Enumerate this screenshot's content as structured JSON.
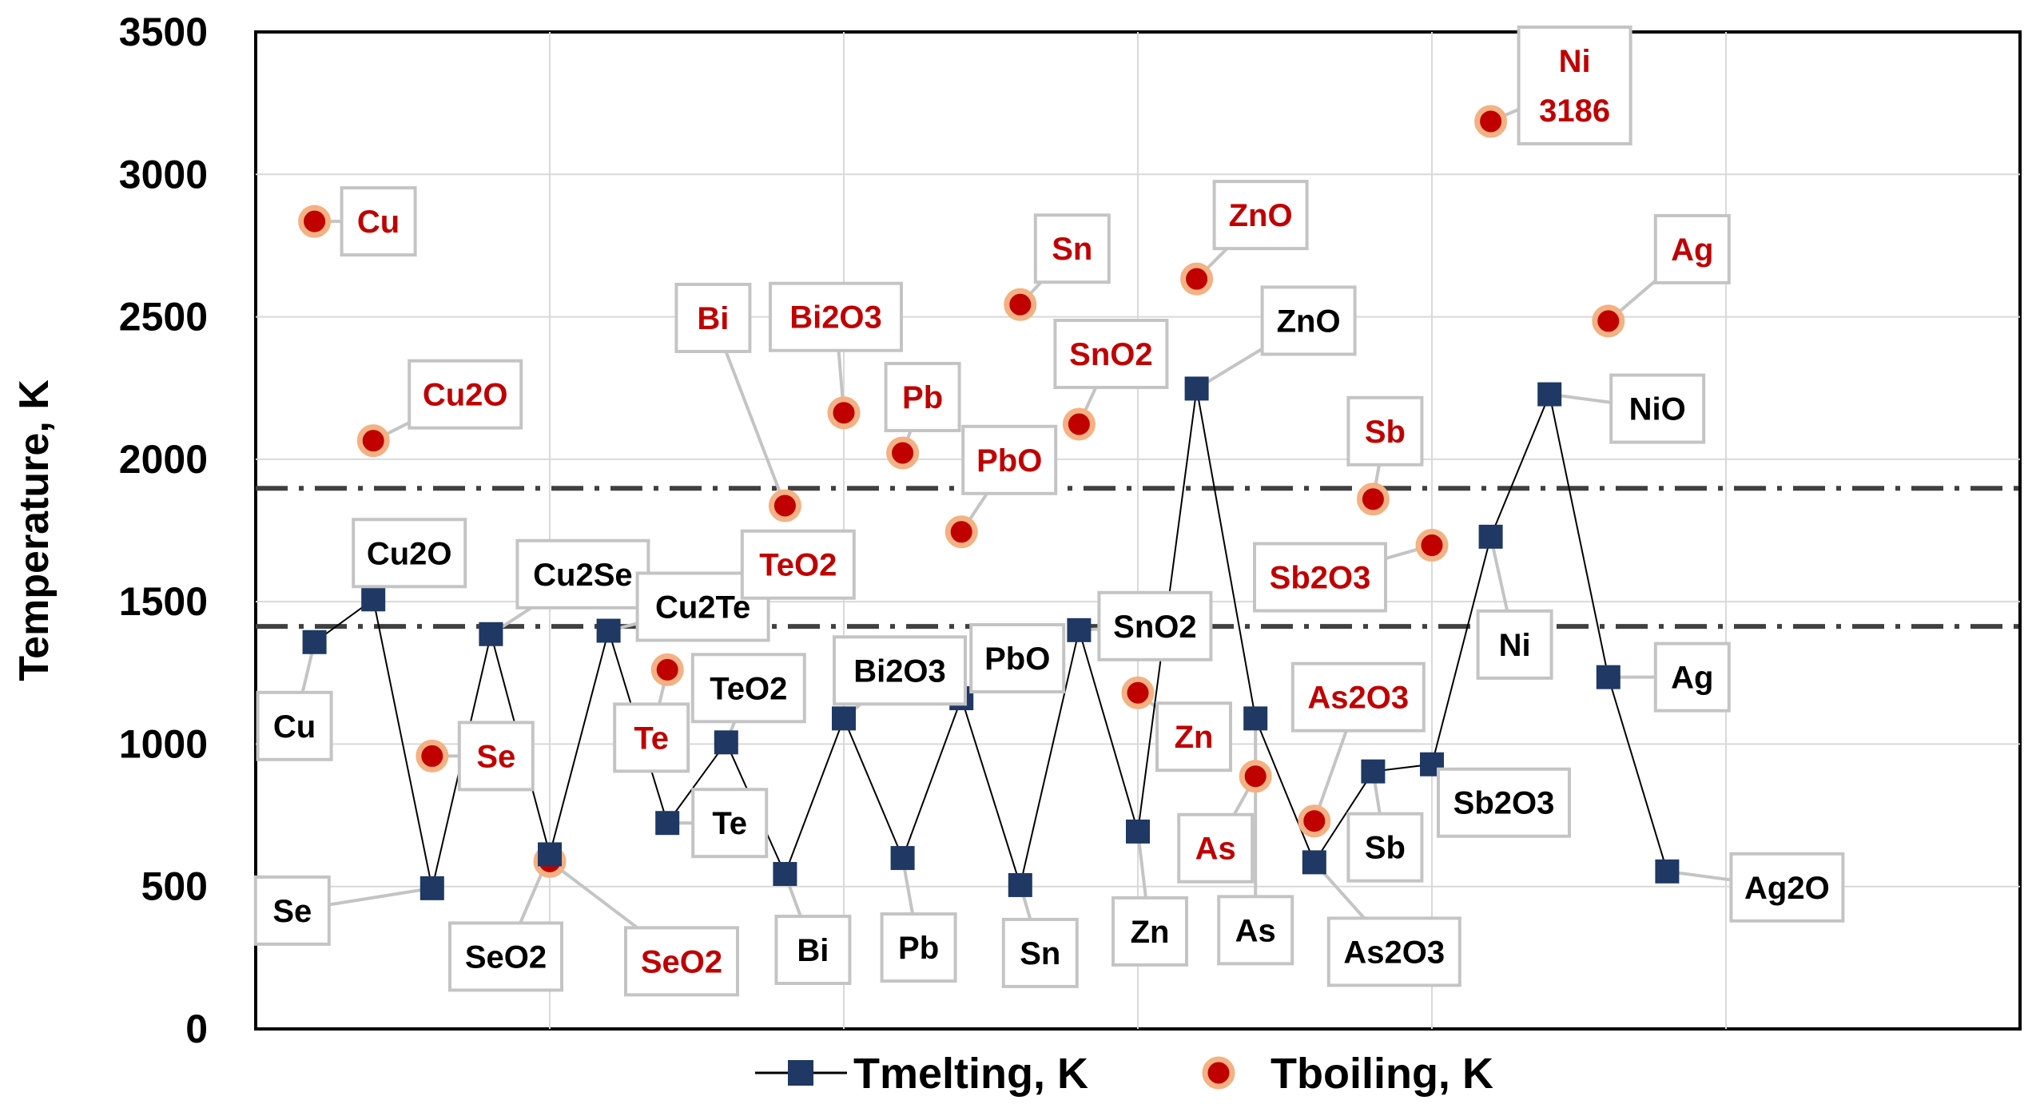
{
  "chart_data": {
    "type": "scatter",
    "ylabel": "Temperature, K",
    "ylim": [
      0,
      3500
    ],
    "yticks": [
      0,
      500,
      1000,
      1500,
      2000,
      2500,
      3000,
      3500
    ],
    "x_range": [
      0,
      6
    ],
    "grid": true,
    "legend_position": "bottom",
    "series": [
      {
        "name": "Tmelting, K",
        "marker": "square",
        "line": true,
        "color": "#1f3864",
        "points": [
          {
            "x": 0.2,
            "y": 1358,
            "label": "Cu"
          },
          {
            "x": 0.4,
            "y": 1508,
            "label": "Cu2O"
          },
          {
            "x": 0.6,
            "y": 494,
            "label": "Se"
          },
          {
            "x": 0.8,
            "y": 1386,
            "label": "Cu2Se"
          },
          {
            "x": 1.0,
            "y": 613,
            "label": "SeO2"
          },
          {
            "x": 1.2,
            "y": 1398,
            "label": "Cu2Te"
          },
          {
            "x": 1.4,
            "y": 723,
            "label": "Te"
          },
          {
            "x": 1.6,
            "y": 1006,
            "label": "TeO2"
          },
          {
            "x": 1.8,
            "y": 544,
            "label": "Bi"
          },
          {
            "x": 2.0,
            "y": 1090,
            "label": "Bi2O3"
          },
          {
            "x": 2.2,
            "y": 600,
            "label": "Pb"
          },
          {
            "x": 2.4,
            "y": 1161,
            "label": "PbO"
          },
          {
            "x": 2.6,
            "y": 505,
            "label": "Sn"
          },
          {
            "x": 2.8,
            "y": 1400,
            "label": "SnO2"
          },
          {
            "x": 3.0,
            "y": 693,
            "label": "Zn"
          },
          {
            "x": 3.2,
            "y": 2248,
            "label": "ZnO"
          },
          {
            "x": 3.4,
            "y": 1090,
            "label": "As"
          },
          {
            "x": 3.6,
            "y": 585,
            "label": "As2O3"
          },
          {
            "x": 3.8,
            "y": 904,
            "label": "Sb"
          },
          {
            "x": 4.0,
            "y": 929,
            "label": "Sb2O3"
          },
          {
            "x": 4.2,
            "y": 1728,
            "label": "Ni"
          },
          {
            "x": 4.4,
            "y": 2228,
            "label": "NiO"
          },
          {
            "x": 4.6,
            "y": 1235,
            "label": "Ag"
          },
          {
            "x": 4.8,
            "y": 553,
            "label": "Ag2O"
          }
        ]
      },
      {
        "name": "Tboiling, K",
        "marker": "circle",
        "line": false,
        "color": "#c00000",
        "points": [
          {
            "x": 0.2,
            "y": 2835,
            "label": "Cu"
          },
          {
            "x": 0.4,
            "y": 2065,
            "label": "Cu2O"
          },
          {
            "x": 0.6,
            "y": 958,
            "label": "Se"
          },
          {
            "x": 1.0,
            "y": 588,
            "label": "SeO2"
          },
          {
            "x": 1.4,
            "y": 1261,
            "label": "Te"
          },
          {
            "x": 1.6,
            "y": 1518,
            "label": "TeO2"
          },
          {
            "x": 1.8,
            "y": 1837,
            "label": "Bi"
          },
          {
            "x": 2.0,
            "y": 2163,
            "label": "Bi2O3"
          },
          {
            "x": 2.2,
            "y": 2022,
            "label": "Pb"
          },
          {
            "x": 2.4,
            "y": 1745,
            "label": "PbO"
          },
          {
            "x": 2.6,
            "y": 2543,
            "label": "Sn"
          },
          {
            "x": 2.8,
            "y": 2123,
            "label": "SnO2"
          },
          {
            "x": 3.0,
            "y": 1180,
            "label": "Zn"
          },
          {
            "x": 3.2,
            "y": 2633,
            "label": "ZnO"
          },
          {
            "x": 3.4,
            "y": 887,
            "label": "As"
          },
          {
            "x": 3.6,
            "y": 730,
            "label": "As2O3"
          },
          {
            "x": 3.8,
            "y": 1860,
            "label": "Sb"
          },
          {
            "x": 4.0,
            "y": 1698,
            "label": "Sb2O3"
          },
          {
            "x": 4.2,
            "y": 3186,
            "label": "Ni",
            "value_label": "3186"
          },
          {
            "x": 4.6,
            "y": 2485,
            "label": "Ag"
          }
        ]
      }
    ],
    "reference_lines": [
      {
        "y": 1898,
        "style": "dash-dot"
      },
      {
        "y": 1413,
        "style": "dash-dot"
      }
    ]
  }
}
